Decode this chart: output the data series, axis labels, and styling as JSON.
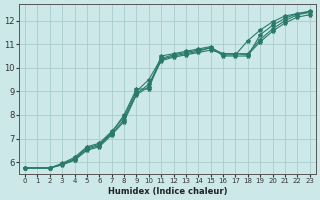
{
  "xlabel": "Humidex (Indice chaleur)",
  "ylabel": "",
  "bg_color": "#cce8e8",
  "grid_color": "#aacccc",
  "line_color": "#2a7a6a",
  "xlim": [
    -0.5,
    23.5
  ],
  "ylim": [
    5.5,
    12.7
  ],
  "xticks": [
    0,
    1,
    2,
    3,
    4,
    5,
    6,
    7,
    8,
    9,
    10,
    11,
    12,
    13,
    14,
    15,
    16,
    17,
    18,
    19,
    20,
    21,
    22,
    23
  ],
  "yticks": [
    6,
    7,
    8,
    9,
    10,
    11,
    12
  ],
  "line1_x": [
    0,
    2,
    3,
    4,
    5,
    6,
    7,
    8,
    9,
    10,
    11,
    12,
    13,
    14,
    15,
    16,
    17,
    18,
    19,
    20,
    21,
    22,
    23
  ],
  "line1_y": [
    5.75,
    5.75,
    5.9,
    6.15,
    6.6,
    6.75,
    7.25,
    8.0,
    9.1,
    9.1,
    10.5,
    10.6,
    10.7,
    10.8,
    10.9,
    10.5,
    10.5,
    10.5,
    11.4,
    11.8,
    12.1,
    12.3,
    12.4
  ],
  "line2_x": [
    0,
    2,
    3,
    4,
    5,
    6,
    7,
    8,
    9,
    10,
    11,
    12,
    13,
    14,
    15,
    16,
    17,
    18,
    19,
    20,
    21,
    22,
    23
  ],
  "line2_y": [
    5.75,
    5.75,
    5.95,
    6.2,
    6.65,
    6.8,
    7.3,
    7.9,
    9.0,
    9.5,
    10.4,
    10.55,
    10.65,
    10.75,
    10.85,
    10.6,
    10.6,
    10.6,
    11.2,
    11.65,
    12.0,
    12.25,
    12.35
  ],
  "line3_x": [
    0,
    2,
    3,
    4,
    5,
    6,
    7,
    8,
    9,
    10,
    11,
    12,
    13,
    14,
    15,
    16,
    17,
    18,
    19,
    20,
    21,
    22,
    23
  ],
  "line3_y": [
    5.75,
    5.75,
    5.9,
    6.1,
    6.55,
    6.7,
    7.2,
    7.8,
    8.9,
    9.3,
    10.35,
    10.5,
    10.6,
    10.7,
    10.85,
    10.55,
    10.55,
    11.15,
    11.6,
    11.95,
    12.2,
    12.3,
    12.38
  ],
  "line4_x": [
    0,
    2,
    3,
    4,
    5,
    6,
    7,
    8,
    9,
    10,
    11,
    12,
    13,
    14,
    15,
    16,
    17,
    18,
    19,
    20,
    21,
    22,
    23
  ],
  "line4_y": [
    5.75,
    5.75,
    5.88,
    6.08,
    6.5,
    6.65,
    7.15,
    7.72,
    8.85,
    9.2,
    10.3,
    10.45,
    10.55,
    10.65,
    10.75,
    10.6,
    10.6,
    10.55,
    11.1,
    11.55,
    11.9,
    12.15,
    12.25
  ]
}
